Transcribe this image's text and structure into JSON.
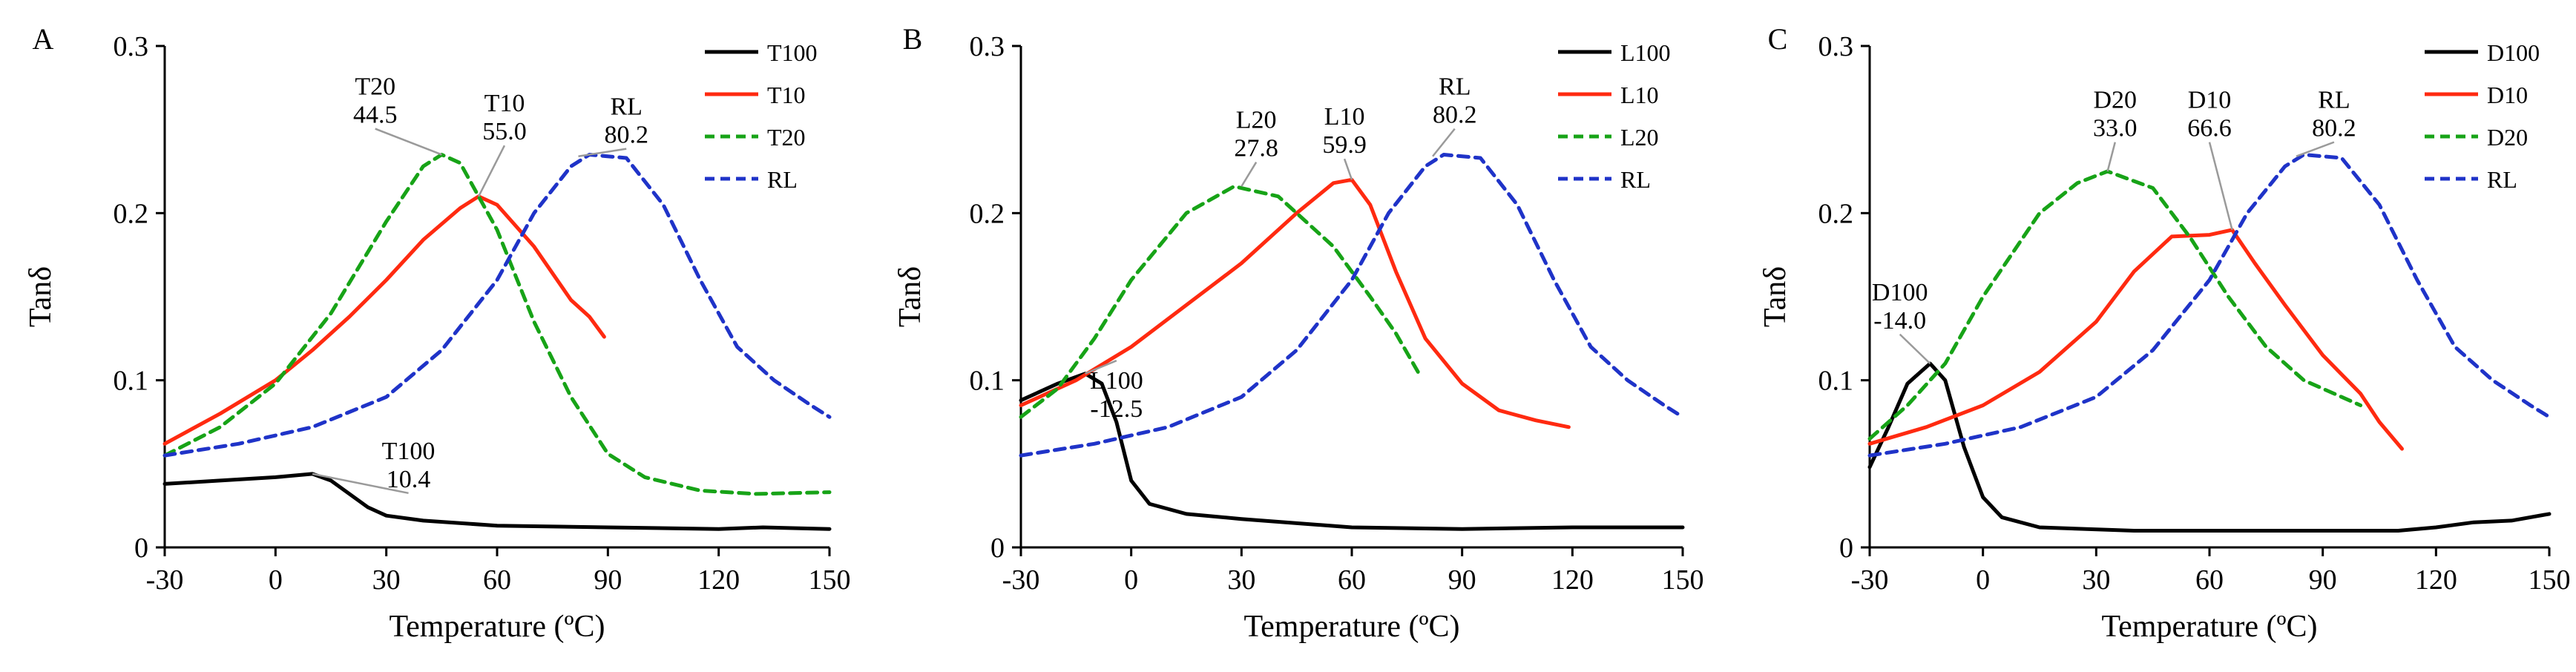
{
  "figure": {
    "colors": {
      "T100": "#000000",
      "T10": "#ff2a10",
      "T20": "#17a317",
      "RL": "#1f33c8",
      "leader": "#9a9a9a"
    },
    "line_styles": {
      "solid": "solid",
      "dashed": "dashed"
    }
  },
  "chart_data": [
    {
      "type": "line",
      "panel_label": "A",
      "xlabel": "Temperature (ºC)",
      "ylabel": "Tanδ",
      "xlim": [
        -30,
        150
      ],
      "ylim": [
        0,
        0.3
      ],
      "xticks": [
        "-30",
        "0",
        "30",
        "60",
        "90",
        "120",
        "150"
      ],
      "yticks": [
        "0",
        "0.1",
        "0.2",
        "0.3"
      ],
      "legend_position": "top-right",
      "series": [
        {
          "name": "T100",
          "color": "#000000",
          "style": "solid",
          "points": [
            [
              -30,
              0.038
            ],
            [
              -15,
              0.04
            ],
            [
              0,
              0.042
            ],
            [
              10,
              0.044
            ],
            [
              15,
              0.04
            ],
            [
              20,
              0.032
            ],
            [
              25,
              0.024
            ],
            [
              30,
              0.019
            ],
            [
              40,
              0.016
            ],
            [
              60,
              0.013
            ],
            [
              90,
              0.012
            ],
            [
              120,
              0.011
            ],
            [
              132,
              0.012
            ],
            [
              150,
              0.011
            ]
          ]
        },
        {
          "name": "T10",
          "color": "#ff2a10",
          "style": "solid",
          "points": [
            [
              -30,
              0.062
            ],
            [
              -15,
              0.08
            ],
            [
              0,
              0.1
            ],
            [
              10,
              0.118
            ],
            [
              20,
              0.138
            ],
            [
              30,
              0.16
            ],
            [
              40,
              0.184
            ],
            [
              50,
              0.203
            ],
            [
              55,
              0.21
            ],
            [
              60,
              0.205
            ],
            [
              70,
              0.18
            ],
            [
              80,
              0.148
            ],
            [
              85,
              0.138
            ],
            [
              89,
              0.126
            ]
          ]
        },
        {
          "name": "T20",
          "color": "#17a317",
          "style": "dashed",
          "points": [
            [
              -30,
              0.055
            ],
            [
              -15,
              0.072
            ],
            [
              0,
              0.098
            ],
            [
              15,
              0.14
            ],
            [
              30,
              0.195
            ],
            [
              40,
              0.228
            ],
            [
              45,
              0.235
            ],
            [
              50,
              0.23
            ],
            [
              60,
              0.19
            ],
            [
              70,
              0.135
            ],
            [
              80,
              0.09
            ],
            [
              90,
              0.056
            ],
            [
              100,
              0.042
            ],
            [
              115,
              0.034
            ],
            [
              130,
              0.032
            ],
            [
              150,
              0.033
            ]
          ]
        },
        {
          "name": "RL",
          "color": "#1f33c8",
          "style": "dashed",
          "points": [
            [
              -30,
              0.055
            ],
            [
              -10,
              0.062
            ],
            [
              10,
              0.072
            ],
            [
              30,
              0.09
            ],
            [
              45,
              0.118
            ],
            [
              60,
              0.16
            ],
            [
              70,
              0.2
            ],
            [
              80,
              0.228
            ],
            [
              85,
              0.235
            ],
            [
              95,
              0.233
            ],
            [
              105,
              0.205
            ],
            [
              115,
              0.16
            ],
            [
              125,
              0.12
            ],
            [
              135,
              0.1
            ],
            [
              145,
              0.085
            ],
            [
              150,
              0.078
            ]
          ]
        }
      ],
      "annotations": [
        {
          "series": "T20",
          "lines": [
            "T20",
            "44.5"
          ],
          "peak": [
            45,
            0.235
          ],
          "label_at": [
            27,
            0.27
          ]
        },
        {
          "series": "T10",
          "lines": [
            "T10",
            "55.0"
          ],
          "peak": [
            55,
            0.21
          ],
          "label_at": [
            62,
            0.26
          ]
        },
        {
          "series": "RL",
          "lines": [
            "RL",
            "80.2"
          ],
          "peak": [
            82,
            0.234
          ],
          "label_at": [
            95,
            0.258
          ]
        },
        {
          "series": "T100",
          "lines": [
            "T100",
            "10.4"
          ],
          "peak": [
            10,
            0.044
          ],
          "label_at": [
            36,
            0.052
          ]
        }
      ]
    },
    {
      "type": "line",
      "panel_label": "B",
      "xlabel": "Temperature (ºC)",
      "ylabel": "Tanδ",
      "xlim": [
        -30,
        150
      ],
      "ylim": [
        0,
        0.3
      ],
      "xticks": [
        "-30",
        "0",
        "30",
        "60",
        "90",
        "120",
        "150"
      ],
      "yticks": [
        "0",
        "0.1",
        "0.2",
        "0.3"
      ],
      "legend_position": "top-right",
      "series": [
        {
          "name": "L100",
          "color": "#000000",
          "style": "solid",
          "points": [
            [
              -30,
              0.088
            ],
            [
              -20,
              0.098
            ],
            [
              -12.5,
              0.104
            ],
            [
              -8,
              0.098
            ],
            [
              -4,
              0.075
            ],
            [
              0,
              0.04
            ],
            [
              5,
              0.026
            ],
            [
              15,
              0.02
            ],
            [
              30,
              0.017
            ],
            [
              60,
              0.012
            ],
            [
              90,
              0.011
            ],
            [
              120,
              0.012
            ],
            [
              150,
              0.012
            ]
          ]
        },
        {
          "name": "L10",
          "color": "#ff2a10",
          "style": "solid",
          "points": [
            [
              -30,
              0.085
            ],
            [
              -15,
              0.1
            ],
            [
              0,
              0.12
            ],
            [
              15,
              0.145
            ],
            [
              30,
              0.17
            ],
            [
              45,
              0.2
            ],
            [
              55,
              0.218
            ],
            [
              60,
              0.22
            ],
            [
              65,
              0.205
            ],
            [
              72,
              0.165
            ],
            [
              80,
              0.125
            ],
            [
              90,
              0.098
            ],
            [
              100,
              0.082
            ],
            [
              110,
              0.076
            ],
            [
              119,
              0.072
            ]
          ]
        },
        {
          "name": "L20",
          "color": "#17a317",
          "style": "dashed",
          "points": [
            [
              -30,
              0.078
            ],
            [
              -20,
              0.095
            ],
            [
              -10,
              0.125
            ],
            [
              0,
              0.16
            ],
            [
              15,
              0.2
            ],
            [
              28,
              0.216
            ],
            [
              40,
              0.21
            ],
            [
              55,
              0.18
            ],
            [
              65,
              0.15
            ],
            [
              72,
              0.128
            ],
            [
              78,
              0.105
            ]
          ]
        },
        {
          "name": "RL",
          "color": "#1f33c8",
          "style": "dashed",
          "points": [
            [
              -30,
              0.055
            ],
            [
              -10,
              0.062
            ],
            [
              10,
              0.072
            ],
            [
              30,
              0.09
            ],
            [
              45,
              0.118
            ],
            [
              60,
              0.16
            ],
            [
              70,
              0.2
            ],
            [
              80,
              0.228
            ],
            [
              85,
              0.235
            ],
            [
              95,
              0.233
            ],
            [
              105,
              0.205
            ],
            [
              115,
              0.16
            ],
            [
              125,
              0.12
            ],
            [
              135,
              0.1
            ],
            [
              145,
              0.085
            ],
            [
              150,
              0.078
            ]
          ]
        }
      ],
      "annotations": [
        {
          "series": "L20",
          "lines": [
            "L20",
            "27.8"
          ],
          "peak": [
            30,
            0.216
          ],
          "label_at": [
            34,
            0.25
          ]
        },
        {
          "series": "L10",
          "lines": [
            "L10",
            "59.9"
          ],
          "peak": [
            60,
            0.22
          ],
          "label_at": [
            58,
            0.252
          ]
        },
        {
          "series": "RL",
          "lines": [
            "RL",
            "80.2"
          ],
          "peak": [
            82,
            0.234
          ],
          "label_at": [
            88,
            0.27
          ]
        },
        {
          "series": "L100",
          "lines": [
            "L100",
            "-12.5"
          ],
          "peak": [
            -12.5,
            0.104
          ],
          "label_at": [
            -4,
            0.094
          ]
        }
      ]
    },
    {
      "type": "line",
      "panel_label": "C",
      "xlabel": "Temperature (ºC)",
      "ylabel": "Tanδ",
      "xlim": [
        -30,
        150
      ],
      "ylim": [
        0,
        0.3
      ],
      "xticks": [
        "-30",
        "0",
        "30",
        "60",
        "90",
        "120",
        "150"
      ],
      "yticks": [
        "0",
        "0.1",
        "0.2",
        "0.3"
      ],
      "legend_position": "top-right",
      "series": [
        {
          "name": "D100",
          "color": "#000000",
          "style": "solid",
          "points": [
            [
              -30,
              0.048
            ],
            [
              -25,
              0.072
            ],
            [
              -20,
              0.098
            ],
            [
              -14,
              0.11
            ],
            [
              -10,
              0.1
            ],
            [
              -5,
              0.06
            ],
            [
              0,
              0.03
            ],
            [
              5,
              0.018
            ],
            [
              15,
              0.012
            ],
            [
              40,
              0.01
            ],
            [
              80,
              0.01
            ],
            [
              110,
              0.01
            ],
            [
              120,
              0.012
            ],
            [
              130,
              0.015
            ],
            [
              140,
              0.016
            ],
            [
              150,
              0.02
            ]
          ]
        },
        {
          "name": "D10",
          "color": "#ff2a10",
          "style": "solid",
          "points": [
            [
              -30,
              0.062
            ],
            [
              -15,
              0.072
            ],
            [
              0,
              0.085
            ],
            [
              15,
              0.105
            ],
            [
              30,
              0.135
            ],
            [
              40,
              0.165
            ],
            [
              50,
              0.186
            ],
            [
              60,
              0.187
            ],
            [
              66,
              0.19
            ],
            [
              72,
              0.17
            ],
            [
              80,
              0.145
            ],
            [
              90,
              0.115
            ],
            [
              100,
              0.092
            ],
            [
              105,
              0.075
            ],
            [
              111,
              0.059
            ]
          ]
        },
        {
          "name": "D20",
          "color": "#17a317",
          "style": "dashed",
          "points": [
            [
              -30,
              0.065
            ],
            [
              -20,
              0.085
            ],
            [
              -10,
              0.11
            ],
            [
              0,
              0.15
            ],
            [
              15,
              0.2
            ],
            [
              25,
              0.218
            ],
            [
              33,
              0.225
            ],
            [
              45,
              0.215
            ],
            [
              55,
              0.185
            ],
            [
              65,
              0.15
            ],
            [
              75,
              0.12
            ],
            [
              85,
              0.1
            ],
            [
              95,
              0.09
            ],
            [
              100,
              0.085
            ]
          ]
        },
        {
          "name": "RL",
          "color": "#1f33c8",
          "style": "dashed",
          "points": [
            [
              -30,
              0.055
            ],
            [
              -10,
              0.062
            ],
            [
              10,
              0.072
            ],
            [
              30,
              0.09
            ],
            [
              45,
              0.118
            ],
            [
              60,
              0.16
            ],
            [
              70,
              0.2
            ],
            [
              80,
              0.228
            ],
            [
              85,
              0.235
            ],
            [
              95,
              0.233
            ],
            [
              105,
              0.205
            ],
            [
              115,
              0.16
            ],
            [
              125,
              0.12
            ],
            [
              135,
              0.1
            ],
            [
              145,
              0.085
            ],
            [
              150,
              0.078
            ]
          ]
        }
      ],
      "annotations": [
        {
          "series": "D20",
          "lines": [
            "D20",
            "33.0"
          ],
          "peak": [
            33,
            0.225
          ],
          "label_at": [
            35,
            0.262
          ]
        },
        {
          "series": "D10",
          "lines": [
            "D10",
            "66.6"
          ],
          "peak": [
            66,
            0.19
          ],
          "label_at": [
            60,
            0.262
          ]
        },
        {
          "series": "RL",
          "lines": [
            "RL",
            "80.2"
          ],
          "peak": [
            83,
            0.234
          ],
          "label_at": [
            93,
            0.262
          ]
        },
        {
          "series": "D100",
          "lines": [
            "D100",
            "-14.0"
          ],
          "peak": [
            -14,
            0.11
          ],
          "label_at": [
            -22,
            0.147
          ]
        }
      ]
    }
  ]
}
